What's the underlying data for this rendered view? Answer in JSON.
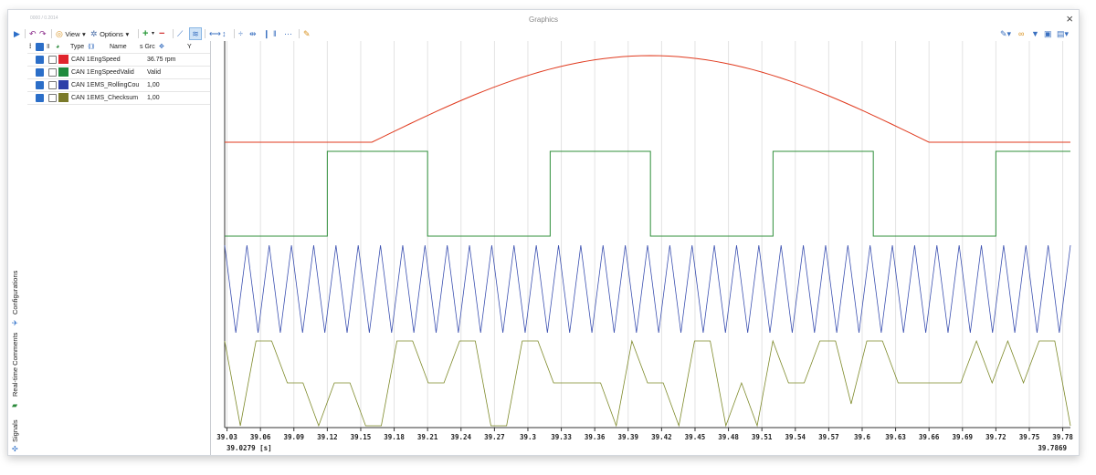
{
  "window": {
    "title": "Graphics",
    "corner_text": "0000 / 0.2014",
    "close_label": "×"
  },
  "toolbar": {
    "view_label": "View",
    "options_label": "Options",
    "view_arrow": "▾",
    "options_arrow": "▾"
  },
  "side_tabs": [
    {
      "label": "Configurations",
      "icon": "configurations-icon"
    },
    {
      "label": "Real-time Comments",
      "icon": "comments-icon"
    },
    {
      "label": "Signals",
      "icon": "signals-icon"
    }
  ],
  "signal_table": {
    "headers": {
      "type": "Type",
      "name": "Name",
      "group": "s Grc",
      "y": "Y"
    },
    "rows": [
      {
        "checked": true,
        "selected": false,
        "color": "#e0242c",
        "type": "CAN 1",
        "name": "EngSpeed",
        "value": "36.75 rpm"
      },
      {
        "checked": true,
        "selected": false,
        "color": "#1e8a3c",
        "type": "CAN 1",
        "name": "EngSpeedValid",
        "value": "Valid"
      },
      {
        "checked": true,
        "selected": false,
        "color": "#2c3fa8",
        "type": "CAN 1",
        "name": "EMS_RollingCou",
        "value": "1,00"
      },
      {
        "checked": true,
        "selected": false,
        "color": "#7a7a2a",
        "type": "CAN 1",
        "name": "EMS_Checksum",
        "value": "1,00"
      }
    ]
  },
  "colors": {
    "engspeed": "#e03a1e",
    "valid": "#2f8f3a",
    "rolling": "#3a4fb0",
    "checksum": "#7e8a2a"
  },
  "chart_data": {
    "type": "line",
    "x_unit": "[s]",
    "x_range": [
      39.0279,
      39.7869
    ],
    "x_start_label": "39.0279",
    "x_end_label": "39.7869",
    "x_ticks": [
      "39.03",
      "39.06",
      "39.09",
      "39.12",
      "39.15",
      "39.18",
      "39.21",
      "39.24",
      "39.27",
      "39.3",
      "39.33",
      "39.36",
      "39.39",
      "39.42",
      "39.45",
      "39.48",
      "39.51",
      "39.54",
      "39.57",
      "39.6",
      "39.63",
      "39.66",
      "39.69",
      "39.72",
      "39.75",
      "39.78"
    ],
    "grid": true,
    "series": [
      {
        "name": "EngSpeed",
        "shape": "flat-arch",
        "rise_start": 39.16,
        "rise_end": 39.66,
        "peak_at": 39.41
      },
      {
        "name": "EngSpeedValid",
        "levels": [
          0,
          1,
          0,
          1,
          0,
          1,
          0,
          1
        ],
        "edges": [
          39.12,
          39.21,
          39.32,
          39.41,
          39.52,
          39.61,
          39.72
        ]
      },
      {
        "name": "EMS_RollingCou",
        "shape": "triangle-wave",
        "periods": 38
      },
      {
        "name": "EMS_Checksum",
        "values": [
          3,
          0,
          3,
          3,
          2,
          2,
          0,
          2,
          2,
          0,
          0,
          3,
          3,
          2,
          2,
          3,
          3,
          0,
          0,
          3,
          3,
          2,
          2,
          2,
          2,
          0,
          3,
          2,
          2,
          0,
          3,
          3,
          0,
          2,
          0,
          3,
          2,
          2,
          3,
          3,
          1,
          3,
          3,
          2,
          2,
          2,
          2,
          2,
          3,
          2,
          3,
          2,
          3,
          3,
          0
        ]
      }
    ]
  }
}
